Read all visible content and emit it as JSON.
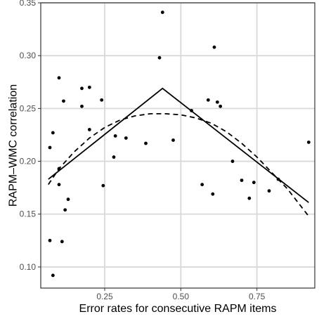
{
  "chart_data": {
    "type": "scatter",
    "title": "",
    "xlabel": "Error rates for consecutive RAPM items",
    "ylabel": "RAPM–WMC correlation",
    "xlim": [
      0.04,
      0.94
    ],
    "ylim": [
      0.08,
      0.35
    ],
    "xticks": [
      0.25,
      0.5,
      0.75
    ],
    "xtick_labels": [
      "0.25",
      "0.50",
      "0.75"
    ],
    "yticks": [
      0.1,
      0.15,
      0.2,
      0.25,
      0.3,
      0.35
    ],
    "ytick_labels": [
      "0.10",
      "0.15",
      "0.20",
      "0.25",
      "0.30",
      "0.35"
    ],
    "grid": true,
    "legend": "none",
    "points": [
      [
        0.07,
        0.125
      ],
      [
        0.07,
        0.213
      ],
      [
        0.08,
        0.092
      ],
      [
        0.08,
        0.227
      ],
      [
        0.1,
        0.279
      ],
      [
        0.1,
        0.193
      ],
      [
        0.1,
        0.178
      ],
      [
        0.11,
        0.124
      ],
      [
        0.115,
        0.257
      ],
      [
        0.12,
        0.154
      ],
      [
        0.13,
        0.164
      ],
      [
        0.175,
        0.269
      ],
      [
        0.175,
        0.252
      ],
      [
        0.2,
        0.27
      ],
      [
        0.2,
        0.23
      ],
      [
        0.24,
        0.258
      ],
      [
        0.245,
        0.177
      ],
      [
        0.28,
        0.204
      ],
      [
        0.285,
        0.224
      ],
      [
        0.32,
        0.222
      ],
      [
        0.385,
        0.217
      ],
      [
        0.43,
        0.298
      ],
      [
        0.44,
        0.341
      ],
      [
        0.475,
        0.22
      ],
      [
        0.535,
        0.248
      ],
      [
        0.57,
        0.178
      ],
      [
        0.59,
        0.258
      ],
      [
        0.605,
        0.169
      ],
      [
        0.61,
        0.308
      ],
      [
        0.62,
        0.256
      ],
      [
        0.63,
        0.252
      ],
      [
        0.67,
        0.2
      ],
      [
        0.7,
        0.182
      ],
      [
        0.725,
        0.165
      ],
      [
        0.74,
        0.18
      ],
      [
        0.79,
        0.172
      ],
      [
        0.82,
        0.183
      ],
      [
        0.92,
        0.218
      ]
    ],
    "series": [
      {
        "style": "solid",
        "x": [
          0.065,
          0.44,
          0.92
        ],
        "y": [
          0.183,
          0.269,
          0.161
        ]
      },
      {
        "style": "dashed",
        "x": [
          0.065,
          0.1,
          0.15,
          0.2,
          0.25,
          0.3,
          0.35,
          0.4,
          0.45,
          0.5,
          0.55,
          0.6,
          0.65,
          0.7,
          0.75,
          0.8,
          0.85,
          0.92
        ],
        "y": [
          0.178,
          0.193,
          0.209,
          0.222,
          0.232,
          0.239,
          0.243,
          0.245,
          0.245,
          0.244,
          0.241,
          0.236,
          0.228,
          0.217,
          0.204,
          0.189,
          0.174,
          0.148
        ]
      }
    ]
  },
  "colors": {
    "point": "#000000",
    "line": "#000000",
    "grid": "#d9d9d9",
    "axis": "#333333",
    "background": "#ffffff"
  }
}
